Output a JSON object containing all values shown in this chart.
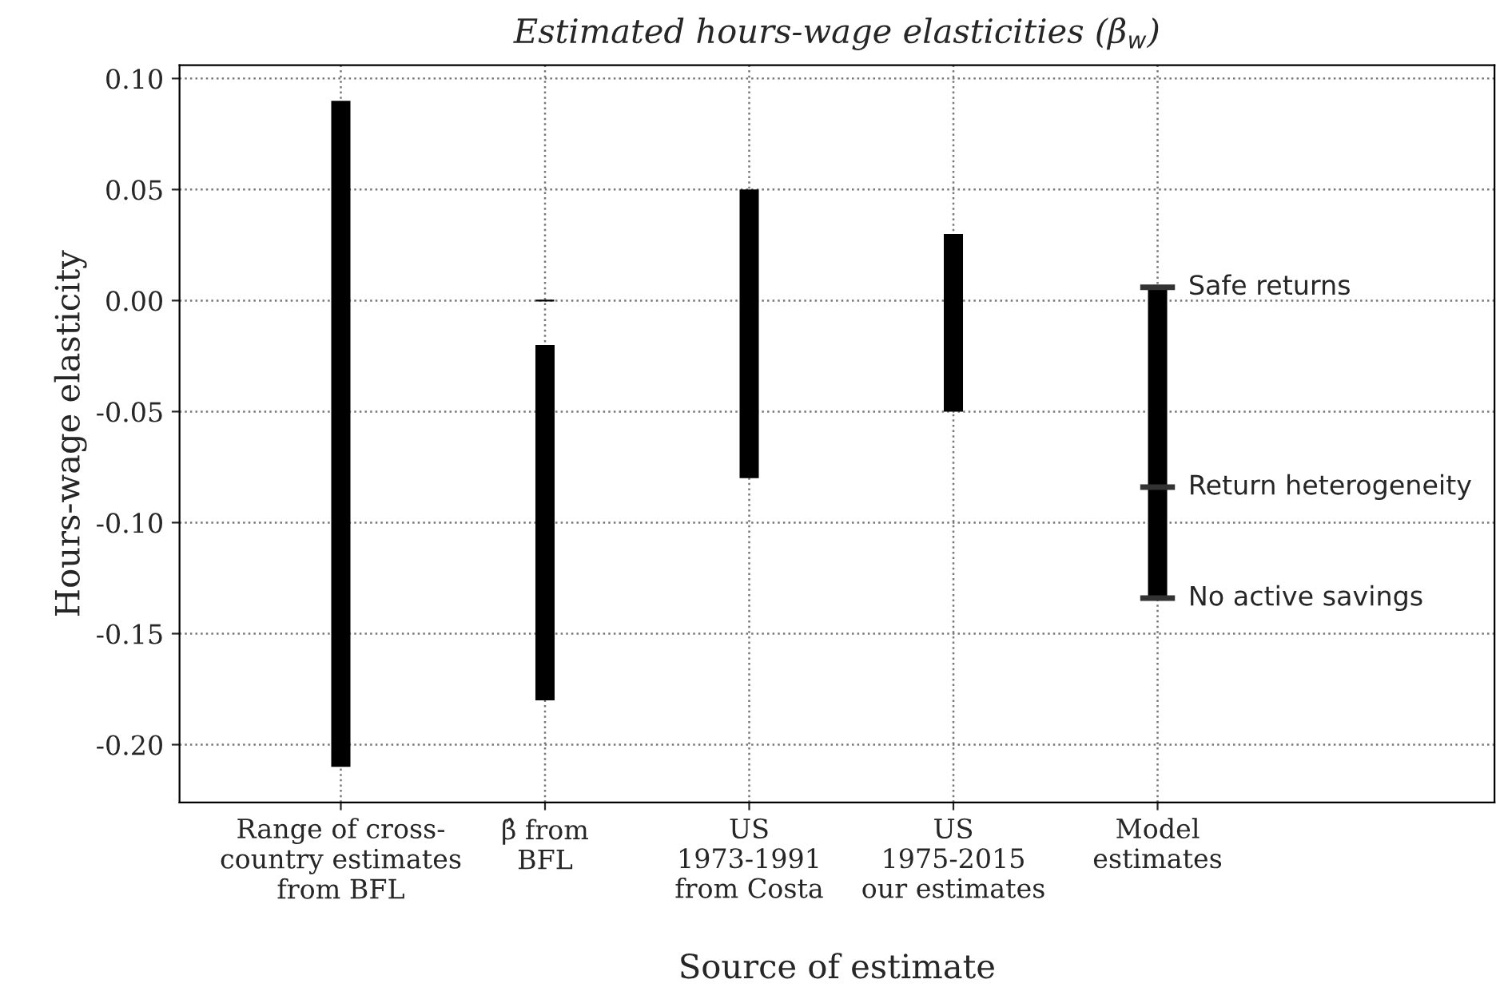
{
  "chart_data": {
    "type": "bar",
    "title": "Estimated hours-wage elasticities (β$_{w}$)",
    "xlabel": "Source of estimate",
    "ylabel": "Hours-wage elasticity",
    "categories": [
      "Range of cross-\ncountry estimates\nfrom BFL",
      "β̂ from\nBFL",
      "US\n1973-1991\nfrom Costa",
      "US\n1975-2015\nour estimates",
      "Model\nestimates"
    ],
    "series": [
      {
        "color": "#000000",
        "base": [
          -0.21,
          -0.18,
          -0.08,
          -0.05,
          -0.134
        ],
        "values": [
          0.3,
          0.16,
          0.13,
          0.08,
          0.14
        ]
      },
      {
        "color": "#000000",
        "values": [
          null,
          0.0,
          null,
          null,
          null
        ]
      },
      {
        "color": "#333333",
        "base": [
          null,
          null,
          null,
          null,
          0.006
        ],
        "values": [
          null,
          null,
          null,
          null,
          0.0
        ]
      },
      {
        "color": "#333333",
        "base": [
          null,
          null,
          null,
          null,
          -0.084
        ],
        "values": [
          null,
          null,
          null,
          null,
          0.0
        ]
      },
      {
        "color": "#333333",
        "base": [
          null,
          null,
          null,
          null,
          -0.134
        ],
        "values": [
          null,
          null,
          null,
          null,
          0.0
        ]
      }
    ],
    "annotations": [
      {
        "text": "Safe returns",
        "x": "Model\nestimates",
        "y": 0.006
      },
      {
        "text": "Return heterogeneity",
        "x": "Model\nestimates",
        "y": -0.084
      },
      {
        "text": "No active savings",
        "x": "Model\nestimates",
        "y": -0.134
      }
    ],
    "ylim": [
      -0.226,
      0.106
    ],
    "yticks": [
      {
        "value": -0.2,
        "label": "-0.20"
      },
      {
        "value": -0.15,
        "label": "-0.15"
      },
      {
        "value": -0.1,
        "label": "-0.10"
      },
      {
        "value": -0.05,
        "label": "-0.05"
      },
      {
        "value": 0.0,
        "label": "0.00"
      },
      {
        "value": 0.05,
        "label": "0.05"
      },
      {
        "value": 0.1,
        "label": "0.10"
      }
    ],
    "grid": true
  }
}
